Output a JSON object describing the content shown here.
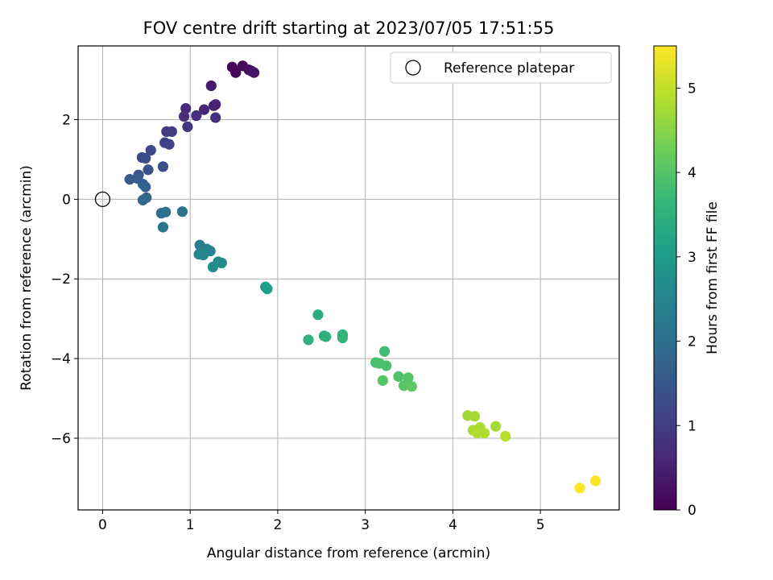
{
  "chart_data": {
    "type": "scatter",
    "title": "FOV centre drift starting at 2023/07/05 17:51:55",
    "xlabel": "Angular distance from reference (arcmin)",
    "ylabel": "Rotation from reference (arcmin)",
    "xlim": [
      -0.28,
      5.9
    ],
    "ylim": [
      -7.8,
      3.85
    ],
    "xticks": [
      0,
      1,
      2,
      3,
      4,
      5
    ],
    "yticks": [
      -6,
      -4,
      -2,
      0,
      2
    ],
    "grid": true,
    "legend": {
      "placement": "top-right",
      "entries": [
        "Reference platepar"
      ]
    },
    "reference_point": {
      "x": 0,
      "y": 0
    },
    "colorbar": {
      "label": "Hours from first FF file",
      "range": [
        0,
        5.5
      ],
      "ticks": [
        0,
        1,
        2,
        3,
        4,
        5
      ],
      "colormap": "viridis"
    },
    "series": [
      {
        "points": [
          {
            "x": 1.48,
            "y": 3.32,
            "c": 0.05
          },
          {
            "x": 1.52,
            "y": 3.18,
            "c": 0.1
          },
          {
            "x": 1.6,
            "y": 3.35,
            "c": 0.15
          },
          {
            "x": 1.67,
            "y": 3.25,
            "c": 0.2
          },
          {
            "x": 1.7,
            "y": 3.22,
            "c": 0.25
          },
          {
            "x": 1.73,
            "y": 3.18,
            "c": 0.3
          },
          {
            "x": 1.24,
            "y": 2.85,
            "c": 0.4
          },
          {
            "x": 1.27,
            "y": 2.35,
            "c": 0.5
          },
          {
            "x": 1.29,
            "y": 2.38,
            "c": 0.55
          },
          {
            "x": 1.16,
            "y": 2.25,
            "c": 0.6
          },
          {
            "x": 0.95,
            "y": 2.28,
            "c": 0.65
          },
          {
            "x": 0.93,
            "y": 2.08,
            "c": 0.7
          },
          {
            "x": 1.07,
            "y": 2.1,
            "c": 0.75
          },
          {
            "x": 1.29,
            "y": 2.05,
            "c": 0.8
          },
          {
            "x": 0.97,
            "y": 1.82,
            "c": 0.85
          },
          {
            "x": 0.73,
            "y": 1.7,
            "c": 0.95
          },
          {
            "x": 0.79,
            "y": 1.7,
            "c": 1.0
          },
          {
            "x": 0.71,
            "y": 1.42,
            "c": 1.05
          },
          {
            "x": 0.76,
            "y": 1.38,
            "c": 1.1
          },
          {
            "x": 0.55,
            "y": 1.23,
            "c": 1.2
          },
          {
            "x": 0.45,
            "y": 1.05,
            "c": 1.25
          },
          {
            "x": 0.49,
            "y": 1.03,
            "c": 1.3
          },
          {
            "x": 0.69,
            "y": 0.82,
            "c": 1.35
          },
          {
            "x": 0.52,
            "y": 0.74,
            "c": 1.4
          },
          {
            "x": 0.41,
            "y": 0.61,
            "c": 1.5
          },
          {
            "x": 0.31,
            "y": 0.5,
            "c": 1.55
          },
          {
            "x": 0.4,
            "y": 0.52,
            "c": 1.6
          },
          {
            "x": 0.46,
            "y": 0.38,
            "c": 1.65
          },
          {
            "x": 0.49,
            "y": 0.31,
            "c": 1.7
          },
          {
            "x": 0.5,
            "y": 0.04,
            "c": 1.8
          },
          {
            "x": 0.46,
            "y": -0.02,
            "c": 1.85
          },
          {
            "x": 0.67,
            "y": -0.35,
            "c": 2.0
          },
          {
            "x": 0.72,
            "y": -0.32,
            "c": 2.05
          },
          {
            "x": 0.91,
            "y": -0.31,
            "c": 2.1
          },
          {
            "x": 0.69,
            "y": -0.7,
            "c": 2.15
          },
          {
            "x": 1.11,
            "y": -1.15,
            "c": 2.35
          },
          {
            "x": 1.19,
            "y": -1.25,
            "c": 2.4
          },
          {
            "x": 1.23,
            "y": -1.3,
            "c": 2.45
          },
          {
            "x": 1.1,
            "y": -1.38,
            "c": 2.5
          },
          {
            "x": 1.15,
            "y": -1.4,
            "c": 2.55
          },
          {
            "x": 1.32,
            "y": -1.57,
            "c": 2.6
          },
          {
            "x": 1.36,
            "y": -1.6,
            "c": 2.65
          },
          {
            "x": 1.26,
            "y": -1.7,
            "c": 2.7
          },
          {
            "x": 1.86,
            "y": -2.2,
            "c": 3.0
          },
          {
            "x": 1.88,
            "y": -2.25,
            "c": 3.05
          },
          {
            "x": 2.46,
            "y": -2.9,
            "c": 3.4
          },
          {
            "x": 2.53,
            "y": -3.43,
            "c": 3.45
          },
          {
            "x": 2.55,
            "y": -3.45,
            "c": 3.5
          },
          {
            "x": 2.35,
            "y": -3.53,
            "c": 3.5
          },
          {
            "x": 2.74,
            "y": -3.4,
            "c": 3.55
          },
          {
            "x": 2.74,
            "y": -3.48,
            "c": 3.6
          },
          {
            "x": 3.22,
            "y": -3.82,
            "c": 3.8
          },
          {
            "x": 3.12,
            "y": -4.1,
            "c": 3.85
          },
          {
            "x": 3.16,
            "y": -4.12,
            "c": 3.9
          },
          {
            "x": 3.24,
            "y": -4.18,
            "c": 3.9
          },
          {
            "x": 3.38,
            "y": -4.45,
            "c": 3.95
          },
          {
            "x": 3.49,
            "y": -4.48,
            "c": 4.0
          },
          {
            "x": 3.2,
            "y": -4.55,
            "c": 4.0
          },
          {
            "x": 3.44,
            "y": -4.68,
            "c": 4.05
          },
          {
            "x": 3.53,
            "y": -4.7,
            "c": 4.1
          },
          {
            "x": 4.17,
            "y": -5.43,
            "c": 4.7
          },
          {
            "x": 4.25,
            "y": -5.45,
            "c": 4.75
          },
          {
            "x": 4.49,
            "y": -5.7,
            "c": 4.75
          },
          {
            "x": 4.31,
            "y": -5.73,
            "c": 4.8
          },
          {
            "x": 4.23,
            "y": -5.8,
            "c": 4.8
          },
          {
            "x": 4.28,
            "y": -5.87,
            "c": 4.85
          },
          {
            "x": 4.36,
            "y": -5.87,
            "c": 4.85
          },
          {
            "x": 4.6,
            "y": -5.95,
            "c": 4.9
          },
          {
            "x": 5.63,
            "y": -7.07,
            "c": 5.45
          },
          {
            "x": 5.45,
            "y": -7.25,
            "c": 5.5
          }
        ]
      }
    ]
  }
}
